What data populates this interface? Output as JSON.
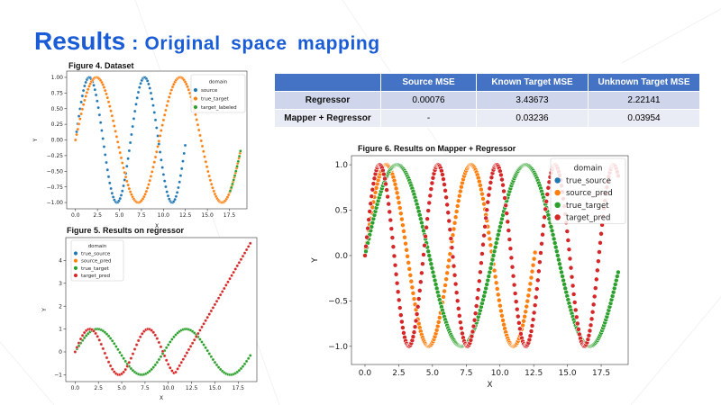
{
  "slide": {
    "title_main": "Results",
    "title_sep": ":",
    "title_sub": "Original space mapping"
  },
  "colors": {
    "title": "#1a5cd6",
    "table_header": "#4472c4",
    "table_row_dark": "#cfd5ea",
    "table_row_light": "#e9ebf5",
    "series_blue": "#1f77b4",
    "series_orange": "#ff7f0e",
    "series_green": "#2ca02c",
    "series_red": "#d62728"
  },
  "table": {
    "headers": [
      "",
      "Source MSE",
      "Known Target MSE",
      "Unknown Target MSE"
    ],
    "rows": [
      [
        "Regressor",
        "0.00076",
        "3.43673",
        "2.22141"
      ],
      [
        "Mapper + Regressor",
        "-",
        "0.03236",
        "0.03954"
      ]
    ]
  },
  "chart_data": [
    {
      "type": "scatter",
      "caption": "Figure 4. Dataset",
      "xlabel": "X",
      "ylabel": "Y",
      "xlim": [
        -1,
        19.5
      ],
      "ylim": [
        -1.1,
        1.1
      ],
      "xticks": [
        0.0,
        2.5,
        5.0,
        7.5,
        10.0,
        12.5,
        15.0,
        17.5
      ],
      "xtick_labels": [
        "0.0",
        "2.5",
        "5.0",
        "7.5",
        "10.0",
        "12.5",
        "15.0",
        "17.5"
      ],
      "yticks": [
        1.0,
        0.75,
        0.5,
        0.25,
        0.0,
        -0.25,
        -0.5,
        -0.75,
        -1.0
      ],
      "ytick_labels": [
        "1.00",
        "0.75",
        "0.50",
        "0.25",
        "0.00",
        "−0.25",
        "−0.50",
        "−0.75",
        "−1.00"
      ],
      "legend_title": "domain",
      "legend_position": "top-right",
      "series": [
        {
          "name": "source",
          "color": "#1f77b4",
          "fn": "sin",
          "xmin": 0,
          "xmax": 12.6,
          "step": 0.13
        },
        {
          "name": "true_target",
          "color": "#ff7f0e",
          "fn": "sin_scaled",
          "k": 0.66,
          "xmin": 0,
          "xmax": 18.8,
          "step": 0.13
        },
        {
          "name": "target_labeled",
          "color": "#2ca02c",
          "fn": "sin_scaled",
          "k": 0.66,
          "xmin": 17.6,
          "xmax": 18.8,
          "step": 0.13
        }
      ]
    },
    {
      "type": "scatter",
      "caption": "Figure 5. Results  on regressor",
      "xlabel": "X",
      "ylabel": "Y",
      "xlim": [
        -1,
        19.5
      ],
      "ylim": [
        -1.3,
        5.0
      ],
      "xticks": [
        0.0,
        2.5,
        5.0,
        7.5,
        10.0,
        12.5,
        15.0,
        17.5
      ],
      "xtick_labels": [
        "0.0",
        "2.5",
        "5.0",
        "7.5",
        "10.0",
        "12.5",
        "15.0",
        "17.5"
      ],
      "yticks": [
        4,
        3,
        2,
        1,
        0,
        -1
      ],
      "ytick_labels": [
        "4",
        "3",
        "2",
        "1",
        "0",
        "−1"
      ],
      "legend_title": "domain",
      "legend_position": "top-left",
      "series": [
        {
          "name": "true_source",
          "color": "#1f77b4",
          "fn": "sin",
          "xmin": 0,
          "xmax": 10.3,
          "step": 0.2
        },
        {
          "name": "source_pred",
          "color": "#ff7f0e",
          "fn": "sin",
          "xmin": 0,
          "xmax": 10.3,
          "step": 0.2
        },
        {
          "name": "true_target",
          "color": "#2ca02c",
          "fn": "sin_scaled",
          "k": 0.66,
          "xmin": 0,
          "xmax": 18.8,
          "step": 0.2
        },
        {
          "name": "target_pred",
          "color": "#d62728",
          "fn": "sin_then_linear",
          "xmin": 0,
          "xmax": 18.8,
          "step": 0.2,
          "break_x": 10.7,
          "end_y": 4.75
        }
      ]
    },
    {
      "type": "scatter",
      "caption": "Figure 6. Results  on Mapper + Regressor",
      "xlabel": "X",
      "ylabel": "Y",
      "xlim": [
        -1,
        19.5
      ],
      "ylim": [
        -1.2,
        1.1
      ],
      "xticks": [
        0.0,
        2.5,
        5.0,
        7.5,
        10.0,
        12.5,
        15.0,
        17.5
      ],
      "xtick_labels": [
        "0.0",
        "2.5",
        "5.0",
        "7.5",
        "10.0",
        "12.5",
        "15.0",
        "17.5"
      ],
      "yticks": [
        1.0,
        0.5,
        0.0,
        -0.5,
        -1.0
      ],
      "ytick_labels": [
        "1.0",
        "0.5",
        "0.0",
        "−0.5",
        "−1.0"
      ],
      "legend_title": "domain",
      "legend_position": "top-right",
      "series": [
        {
          "name": "true_source",
          "color": "#1f77b4",
          "fn": "sin",
          "xmin": 0,
          "xmax": 12.6,
          "step": 0.07
        },
        {
          "name": "source_pred",
          "color": "#ff7f0e",
          "fn": "sin",
          "xmin": 0,
          "xmax": 12.6,
          "step": 0.07
        },
        {
          "name": "true_target",
          "color": "#2ca02c",
          "fn": "sin_scaled",
          "k": 0.66,
          "xmin": 0,
          "xmax": 18.8,
          "step": 0.07
        },
        {
          "name": "target_pred",
          "color": "#d62728",
          "fn": "sin_scaled",
          "k": 1.45,
          "xmin": 0,
          "xmax": 18.8,
          "step": 0.07
        }
      ]
    }
  ]
}
